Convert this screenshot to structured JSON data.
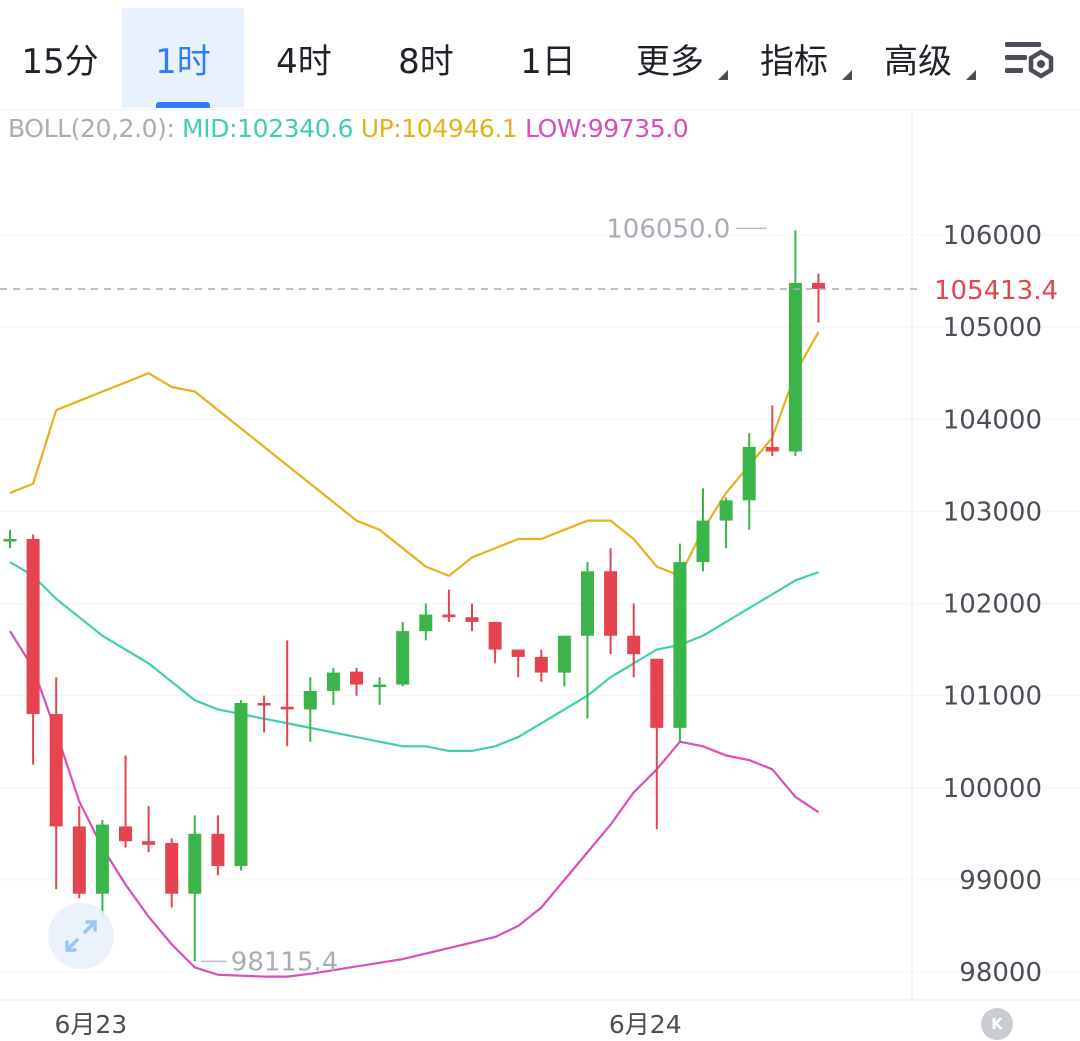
{
  "toolbar": {
    "tabs": [
      {
        "label": "15分",
        "active": false
      },
      {
        "label": "1时",
        "active": true
      },
      {
        "label": "4时",
        "active": false
      },
      {
        "label": "8时",
        "active": false
      },
      {
        "label": "1日",
        "active": false
      },
      {
        "label": "更多",
        "dropdown": true
      },
      {
        "label": "指标",
        "dropdown": true
      },
      {
        "label": "高级",
        "dropdown": true
      }
    ],
    "settings_icon": "chart-settings-icon"
  },
  "indicator": {
    "name": "BOLL(20,2.0):",
    "mid": "MID:102340.6",
    "up": "UP:104946.1",
    "low": "LOW:99735.0"
  },
  "colors": {
    "rise": "#3bb44a",
    "fall": "#e4434f",
    "mid": "#3fcfb0",
    "up": "#e4b21b",
    "low": "#d94fb5",
    "accent": "#2f7ef5"
  },
  "chart_data": {
    "type": "candlestick",
    "interval": "1h",
    "ylim": [
      97700,
      106900
    ],
    "y_ticks": [
      98000,
      99000,
      100000,
      101000,
      102000,
      103000,
      104000,
      105000,
      106000
    ],
    "y_tick_labels": [
      "98000",
      "99000",
      "100000",
      "101000",
      "102000",
      "103000",
      "104000",
      "105000",
      "106000"
    ],
    "x_labels": [
      {
        "label": "6月23",
        "index": 3.5
      },
      {
        "label": "6月24",
        "index": 27.5
      }
    ],
    "current_price": 105413.4,
    "current_price_label": "105413.4",
    "max_label": {
      "value": 106050.0,
      "text": "106050.0",
      "index": 33
    },
    "min_label": {
      "value": 98115.4,
      "text": "98115.4",
      "index": 8
    },
    "candles": [
      {
        "o": 102700,
        "h": 102800,
        "l": 102600,
        "c": 102700
      },
      {
        "o": 102700,
        "h": 102750,
        "l": 100250,
        "c": 100800
      },
      {
        "o": 100800,
        "h": 101200,
        "l": 98900,
        "c": 99580
      },
      {
        "o": 99580,
        "h": 99800,
        "l": 98800,
        "c": 98850
      },
      {
        "o": 98850,
        "h": 99650,
        "l": 98600,
        "c": 99600
      },
      {
        "o": 99580,
        "h": 100350,
        "l": 99350,
        "c": 99420
      },
      {
        "o": 99420,
        "h": 99800,
        "l": 99300,
        "c": 99380
      },
      {
        "o": 99400,
        "h": 99450,
        "l": 98700,
        "c": 98850
      },
      {
        "o": 98850,
        "h": 99700,
        "l": 98115.4,
        "c": 99500
      },
      {
        "o": 99500,
        "h": 99700,
        "l": 99050,
        "c": 99150
      },
      {
        "o": 99150,
        "h": 100950,
        "l": 99100,
        "c": 100920
      },
      {
        "o": 100920,
        "h": 101000,
        "l": 100600,
        "c": 100900
      },
      {
        "o": 100880,
        "h": 101600,
        "l": 100450,
        "c": 100850
      },
      {
        "o": 100850,
        "h": 101200,
        "l": 100500,
        "c": 101050
      },
      {
        "o": 101050,
        "h": 101300,
        "l": 100900,
        "c": 101250
      },
      {
        "o": 101260,
        "h": 101300,
        "l": 101000,
        "c": 101120
      },
      {
        "o": 101100,
        "h": 101200,
        "l": 100900,
        "c": 101120
      },
      {
        "o": 101120,
        "h": 101800,
        "l": 101100,
        "c": 101700
      },
      {
        "o": 101700,
        "h": 102000,
        "l": 101600,
        "c": 101880
      },
      {
        "o": 101880,
        "h": 102150,
        "l": 101800,
        "c": 101850
      },
      {
        "o": 101850,
        "h": 102000,
        "l": 101700,
        "c": 101800
      },
      {
        "o": 101800,
        "h": 101800,
        "l": 101350,
        "c": 101500
      },
      {
        "o": 101500,
        "h": 101500,
        "l": 101200,
        "c": 101420
      },
      {
        "o": 101420,
        "h": 101500,
        "l": 101150,
        "c": 101250
      },
      {
        "o": 101250,
        "h": 101650,
        "l": 101100,
        "c": 101650
      },
      {
        "o": 101650,
        "h": 102450,
        "l": 100750,
        "c": 102350
      },
      {
        "o": 102350,
        "h": 102600,
        "l": 101450,
        "c": 101650
      },
      {
        "o": 101650,
        "h": 102000,
        "l": 101200,
        "c": 101450
      },
      {
        "o": 101400,
        "h": 101400,
        "l": 99550,
        "c": 100650
      },
      {
        "o": 100650,
        "h": 102650,
        "l": 100500,
        "c": 102450
      },
      {
        "o": 102450,
        "h": 103250,
        "l": 102350,
        "c": 102900
      },
      {
        "o": 102900,
        "h": 103150,
        "l": 102600,
        "c": 103120
      },
      {
        "o": 103120,
        "h": 103850,
        "l": 102800,
        "c": 103700
      },
      {
        "o": 103700,
        "h": 104150,
        "l": 103600,
        "c": 103650
      },
      {
        "o": 103650,
        "h": 106050,
        "l": 103600,
        "c": 105480
      },
      {
        "o": 105480,
        "h": 105580,
        "l": 105050,
        "c": 105413.4
      }
    ],
    "series": [
      {
        "key": "up",
        "values": [
          103200,
          103300,
          104100,
          104200,
          104300,
          104400,
          104500,
          104350,
          104300,
          104100,
          103900,
          103700,
          103500,
          103300,
          103100,
          102900,
          102800,
          102600,
          102400,
          102300,
          102500,
          102600,
          102700,
          102700,
          102800,
          102900,
          102900,
          102700,
          102400,
          102300,
          102800,
          103200,
          103500,
          103800,
          104500,
          104946.1
        ]
      },
      {
        "key": "mid",
        "values": [
          102450,
          102300,
          102050,
          101850,
          101650,
          101500,
          101350,
          101150,
          100950,
          100850,
          100800,
          100750,
          100700,
          100650,
          100600,
          100550,
          100500,
          100450,
          100450,
          100400,
          100400,
          100450,
          100550,
          100700,
          100850,
          101000,
          101200,
          101350,
          101500,
          101550,
          101650,
          101800,
          101950,
          102100,
          102250,
          102340.6
        ]
      },
      {
        "key": "low",
        "values": [
          101700,
          101300,
          100600,
          99850,
          99350,
          98950,
          98600,
          98300,
          98050,
          97970,
          97960,
          97950,
          97950,
          97980,
          98020,
          98060,
          98100,
          98140,
          98200,
          98260,
          98320,
          98380,
          98500,
          98700,
          99000,
          99300,
          99600,
          99950,
          100200,
          100500,
          100450,
          100350,
          100300,
          100200,
          99900,
          99735.0
        ]
      }
    ]
  }
}
